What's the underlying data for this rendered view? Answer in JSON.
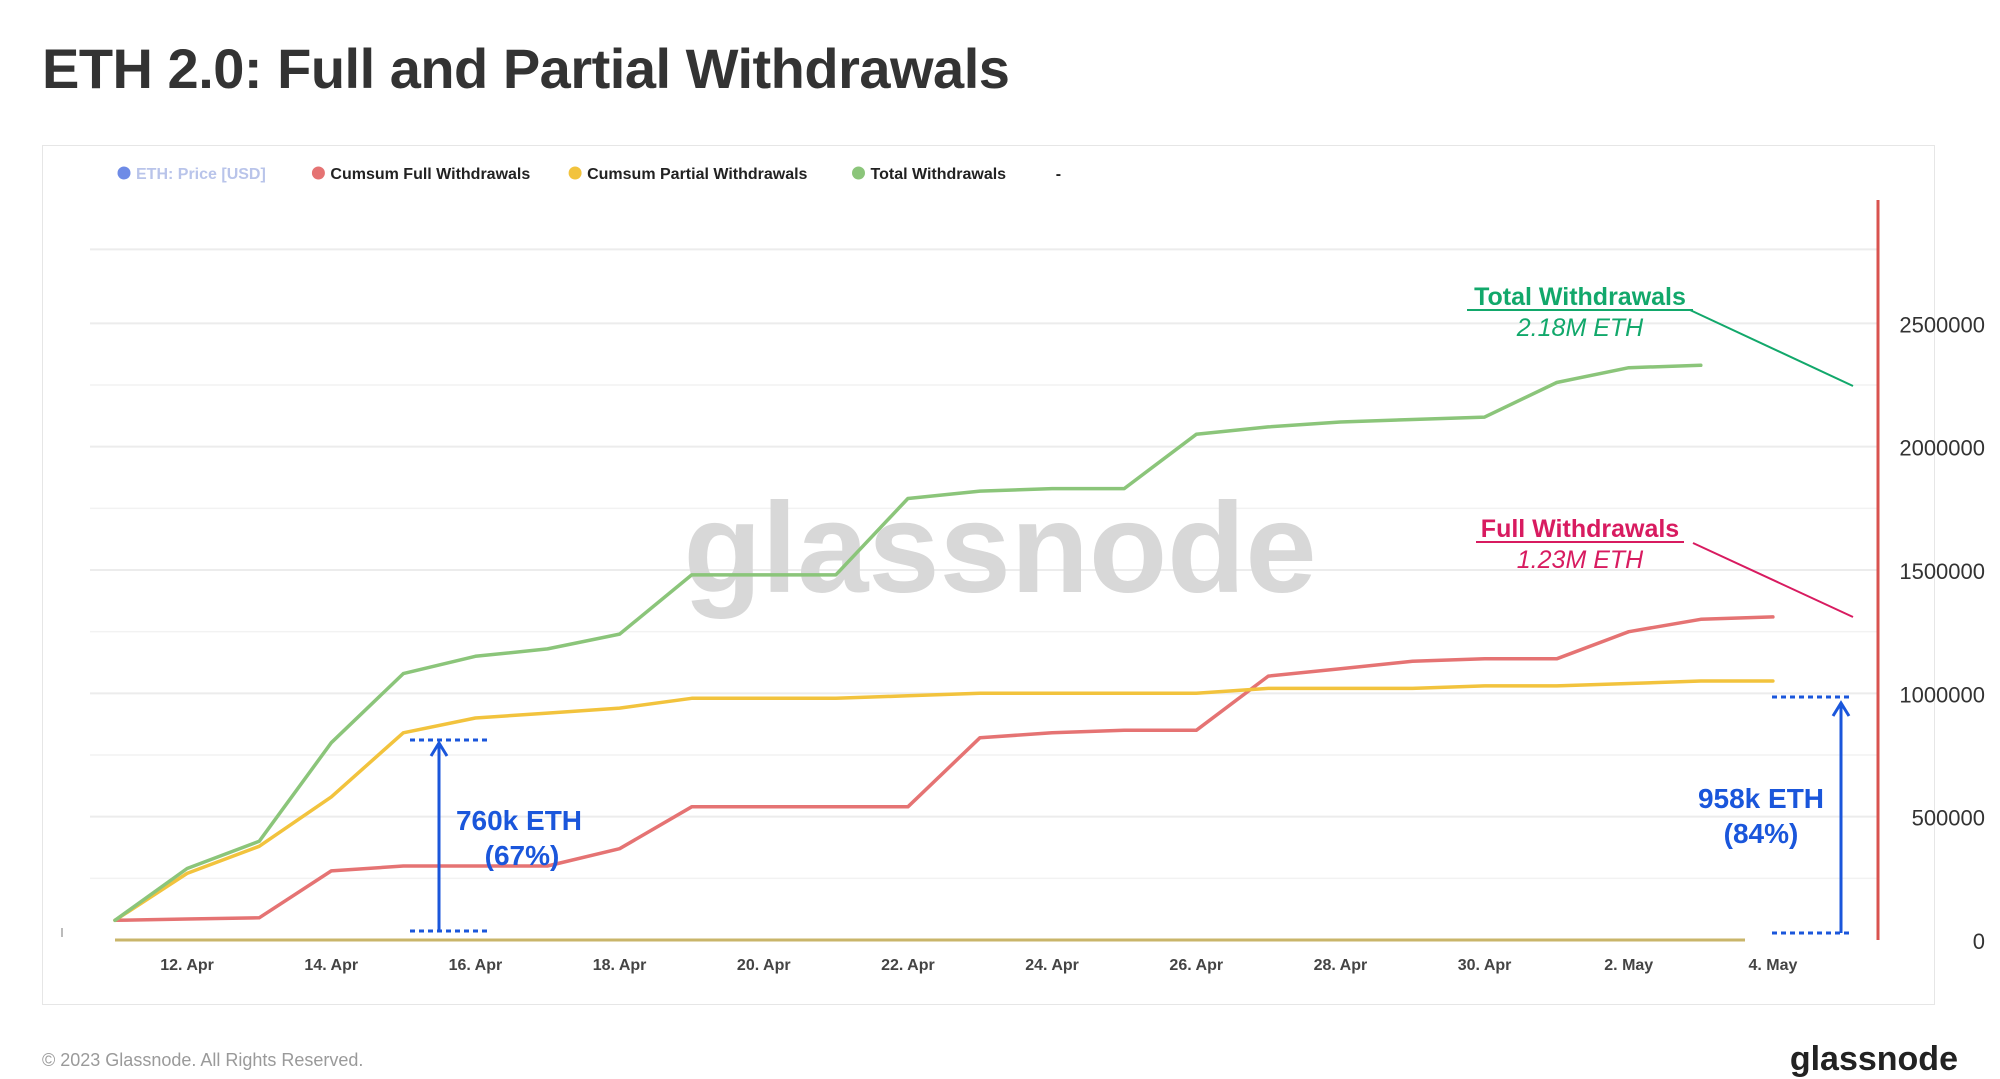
{
  "page_title": "ETH 2.0: Full and Partial Withdrawals",
  "footer": {
    "copyright": "© 2023 Glassnode. All Rights Reserved.",
    "brand": "glassnode"
  },
  "watermark": "glassnode",
  "colors": {
    "price": "#6e8be6",
    "full": "#e57373",
    "partial": "#f2c33d",
    "total": "#8bc57a",
    "axis": "#d9534f",
    "annotation_blue": "#1a56db",
    "annotation_total": "#12a86b",
    "annotation_full": "#d81b60"
  },
  "chart_data": {
    "type": "line",
    "title": "ETH 2.0: Full and Partial Withdrawals",
    "legend_position": "top-left",
    "legend": [
      {
        "name": "ETH: Price [USD]",
        "color": "#6e8be6",
        "disabled": true
      },
      {
        "name": "Cumsum Full Withdrawals",
        "color": "#e57373"
      },
      {
        "name": "Cumsum Partial Withdrawals",
        "color": "#f2c33d"
      },
      {
        "name": "Total Withdrawals",
        "color": "#8bc57a"
      },
      {
        "name": "-",
        "color": null
      }
    ],
    "x": [
      "2023-04-11",
      "2023-04-12",
      "2023-04-13",
      "2023-04-14",
      "2023-04-15",
      "2023-04-16",
      "2023-04-17",
      "2023-04-18",
      "2023-04-19",
      "2023-04-20",
      "2023-04-21",
      "2023-04-22",
      "2023-04-23",
      "2023-04-24",
      "2023-04-25",
      "2023-04-26",
      "2023-04-27",
      "2023-04-28",
      "2023-04-29",
      "2023-04-30",
      "2023-05-01",
      "2023-05-02",
      "2023-05-03",
      "2023-05-04",
      "2023-05-05"
    ],
    "x_ticks": [
      "12. Apr",
      "14. Apr",
      "16. Apr",
      "18. Apr",
      "20. Apr",
      "22. Apr",
      "24. Apr",
      "26. Apr",
      "28. Apr",
      "30. Apr",
      "2. May",
      "4. May"
    ],
    "x_tick_dates": [
      "2023-04-12",
      "2023-04-14",
      "2023-04-16",
      "2023-04-18",
      "2023-04-20",
      "2023-04-22",
      "2023-04-24",
      "2023-04-26",
      "2023-04-28",
      "2023-04-30",
      "2023-05-02",
      "2023-05-04"
    ],
    "y_ticks": [
      0,
      500000,
      1000000,
      1500000,
      2000000,
      2500000
    ],
    "y_tick_labels": [
      "0",
      "500000",
      "1000000",
      "1500000",
      "2000000",
      "2500000"
    ],
    "ylim": [
      0,
      3000000
    ],
    "grid": true,
    "series": [
      {
        "name": "Cumsum Full Withdrawals",
        "color": "#e57373",
        "values": [
          80000,
          85000,
          90000,
          280000,
          300000,
          300000,
          300000,
          370000,
          540000,
          540000,
          540000,
          540000,
          820000,
          840000,
          850000,
          850000,
          1070000,
          1100000,
          1130000,
          1140000,
          1140000,
          1250000,
          1300000,
          1310000,
          null
        ]
      },
      {
        "name": "Cumsum Partial Withdrawals",
        "color": "#f2c33d",
        "values": [
          80000,
          270000,
          380000,
          580000,
          840000,
          900000,
          920000,
          940000,
          980000,
          980000,
          980000,
          990000,
          1000000,
          1000000,
          1000000,
          1000000,
          1020000,
          1020000,
          1020000,
          1030000,
          1030000,
          1040000,
          1050000,
          1050000,
          null
        ]
      },
      {
        "name": "Total Withdrawals",
        "color": "#8bc57a",
        "values": [
          80000,
          290000,
          400000,
          800000,
          1080000,
          1150000,
          1180000,
          1240000,
          1480000,
          1480000,
          1480000,
          1790000,
          1820000,
          1830000,
          1830000,
          2050000,
          2080000,
          2100000,
          2110000,
          2120000,
          2260000,
          2320000,
          2330000,
          null,
          null
        ]
      }
    ],
    "annotations": {
      "total_label": "Total Withdrawals",
      "total_value": "2.18M ETH",
      "full_label": "Full Withdrawals",
      "full_value": "1.23M ETH",
      "partial_mid_value": "760k ETH",
      "partial_mid_pct": "(67%)",
      "partial_end_value": "958k ETH",
      "partial_end_pct": "(84%)"
    }
  }
}
